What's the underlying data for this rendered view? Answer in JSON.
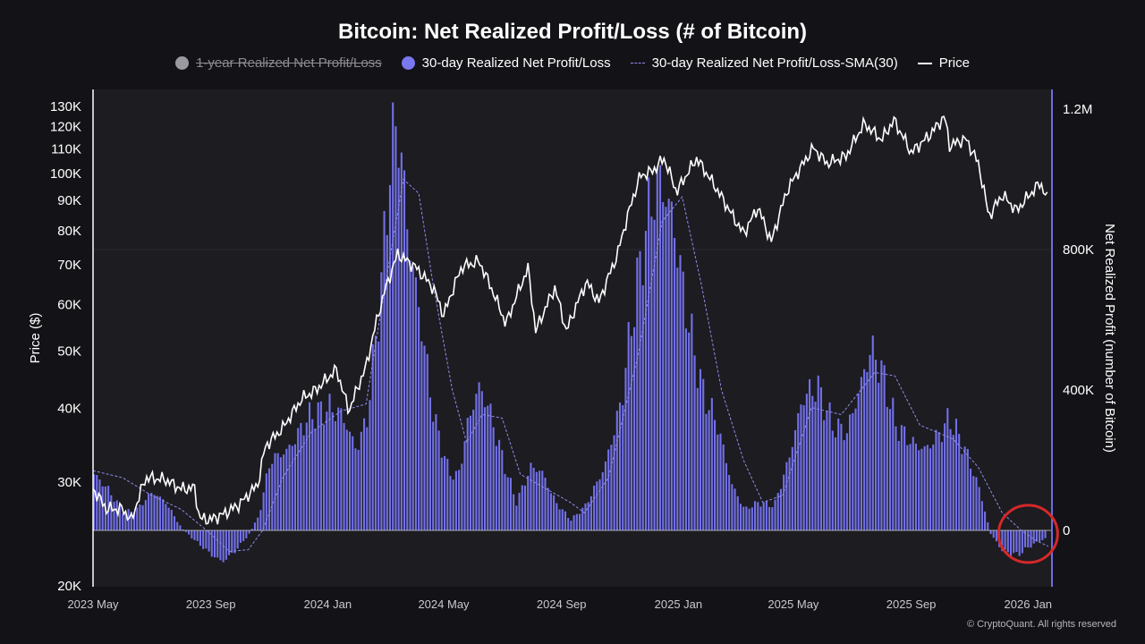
{
  "title": "Bitcoin: Net Realized Profit/Loss (# of Bitcoin)",
  "legend": [
    {
      "label": "1-year Realized Net Profit/Loss",
      "marker": "gray-dot",
      "disabled": true
    },
    {
      "label": "30-day Realized Net Profit/Loss",
      "marker": "purple-dot",
      "disabled": false
    },
    {
      "label": "30-day Realized Net Profit/Loss-SMA(30)",
      "marker": "dashed-line",
      "disabled": false
    },
    {
      "label": "Price",
      "marker": "white-line",
      "disabled": false
    }
  ],
  "footer": "© CryptoQuant. All rights reserved",
  "colors": {
    "background": "#131317",
    "plot_background": "#1c1c21",
    "bars": "#7270e8",
    "sma": "#8f8dea",
    "price": "#ffffff",
    "highlight_circle": "#d62828"
  },
  "chart_data": {
    "type": "bar",
    "title": "Bitcoin: Net Realized Profit/Loss (# of Bitcoin)",
    "x_ticks": [
      "2023 May",
      "2023 Sep",
      "2024 Jan",
      "2024 May",
      "2024 Sep",
      "2025 Jan",
      "2025 May",
      "2025 Sep",
      "2026 Jan"
    ],
    "x_tick_dates": [
      "2023-05-01",
      "2023-09-01",
      "2024-01-01",
      "2024-05-01",
      "2024-09-01",
      "2025-01-01",
      "2025-05-01",
      "2025-09-01",
      "2026-01-01"
    ],
    "x_range": [
      "2023-05-01",
      "2026-01-25"
    ],
    "left_axis": {
      "label": "Price ($)",
      "scale": "log",
      "range": [
        20000,
        135000
      ],
      "ticks": [
        20000,
        30000,
        40000,
        50000,
        60000,
        70000,
        80000,
        90000,
        100000,
        110000,
        120000,
        130000
      ],
      "tick_labels": [
        "20K",
        "30K",
        "40K",
        "50K",
        "60K",
        "70K",
        "80K",
        "90K",
        "100K",
        "110K",
        "120K",
        "130K"
      ]
    },
    "right_axis": {
      "label": "Net Realized Profit (number of Bitcoin)",
      "scale": "linear",
      "range": [
        -160000,
        1260000
      ],
      "ticks": [
        0,
        400000,
        800000,
        1200000
      ],
      "tick_labels": [
        "0",
        "400K",
        "800K",
        "1.2M"
      ]
    },
    "price_series": {
      "name": "Price",
      "points": [
        [
          "2023-05-01",
          29200
        ],
        [
          "2023-05-15",
          27000
        ],
        [
          "2023-06-01",
          27000
        ],
        [
          "2023-06-10",
          25800
        ],
        [
          "2023-06-25",
          30500
        ],
        [
          "2023-07-15",
          30300
        ],
        [
          "2023-08-01",
          29200
        ],
        [
          "2023-08-15",
          29300
        ],
        [
          "2023-08-20",
          26000
        ],
        [
          "2023-09-01",
          25900
        ],
        [
          "2023-09-15",
          26500
        ],
        [
          "2023-10-01",
          27500
        ],
        [
          "2023-10-20",
          29700
        ],
        [
          "2023-10-28",
          34500
        ],
        [
          "2023-11-15",
          37000
        ],
        [
          "2023-12-05",
          41500
        ],
        [
          "2023-12-20",
          43000
        ],
        [
          "2024-01-10",
          46500
        ],
        [
          "2024-01-23",
          39500
        ],
        [
          "2024-02-10",
          47000
        ],
        [
          "2024-02-28",
          62000
        ],
        [
          "2024-03-14",
          73000
        ],
        [
          "2024-04-01",
          69500
        ],
        [
          "2024-04-20",
          64000
        ],
        [
          "2024-05-01",
          57500
        ],
        [
          "2024-05-20",
          69500
        ],
        [
          "2024-06-07",
          71000
        ],
        [
          "2024-06-25",
          61000
        ],
        [
          "2024-07-05",
          55500
        ],
        [
          "2024-07-28",
          69000
        ],
        [
          "2024-08-05",
          54000
        ],
        [
          "2024-08-25",
          64000
        ],
        [
          "2024-09-06",
          54000
        ],
        [
          "2024-09-27",
          65500
        ],
        [
          "2024-10-10",
          60500
        ],
        [
          "2024-10-29",
          72500
        ],
        [
          "2024-11-12",
          88000
        ],
        [
          "2024-11-22",
          99000
        ],
        [
          "2024-12-05",
          101000
        ],
        [
          "2024-12-17",
          106000
        ],
        [
          "2024-12-30",
          93000
        ],
        [
          "2025-01-20",
          106000
        ],
        [
          "2025-02-03",
          98000
        ],
        [
          "2025-02-27",
          84500
        ],
        [
          "2025-03-10",
          79000
        ],
        [
          "2025-03-25",
          87500
        ],
        [
          "2025-04-08",
          76500
        ],
        [
          "2025-04-25",
          94000
        ],
        [
          "2025-05-22",
          110500
        ],
        [
          "2025-06-05",
          104000
        ],
        [
          "2025-06-25",
          107000
        ],
        [
          "2025-07-14",
          121500
        ],
        [
          "2025-08-01",
          114000
        ],
        [
          "2025-08-14",
          123000
        ],
        [
          "2025-09-01",
          108500
        ],
        [
          "2025-09-20",
          116000
        ],
        [
          "2025-10-06",
          125000
        ],
        [
          "2025-10-11",
          111500
        ],
        [
          "2025-10-28",
          114500
        ],
        [
          "2025-11-10",
          104000
        ],
        [
          "2025-11-21",
          84500
        ],
        [
          "2025-12-05",
          92000
        ],
        [
          "2025-12-20",
          86500
        ],
        [
          "2026-01-05",
          93000
        ],
        [
          "2026-01-14",
          96500
        ],
        [
          "2026-01-22",
          89500
        ]
      ]
    },
    "bars_series": {
      "name": "30-day Realized Net Profit/Loss",
      "points": [
        [
          "2023-05-01",
          160000
        ],
        [
          "2023-05-15",
          120000
        ],
        [
          "2023-06-01",
          50000
        ],
        [
          "2023-06-15",
          60000
        ],
        [
          "2023-07-01",
          110000
        ],
        [
          "2023-07-15",
          80000
        ],
        [
          "2023-08-01",
          5000
        ],
        [
          "2023-08-15",
          -30000
        ],
        [
          "2023-09-01",
          -70000
        ],
        [
          "2023-09-12",
          -90000
        ],
        [
          "2023-09-25",
          -60000
        ],
        [
          "2023-10-10",
          -10000
        ],
        [
          "2023-10-20",
          40000
        ],
        [
          "2023-11-01",
          200000
        ],
        [
          "2023-11-20",
          230000
        ],
        [
          "2023-12-10",
          320000
        ],
        [
          "2024-01-01",
          350000
        ],
        [
          "2024-01-15",
          330000
        ],
        [
          "2024-01-30",
          230000
        ],
        [
          "2024-02-10",
          320000
        ],
        [
          "2024-02-25",
          700000
        ],
        [
          "2024-03-05",
          1050000
        ],
        [
          "2024-03-13",
          1170000
        ],
        [
          "2024-03-25",
          820000
        ],
        [
          "2024-04-08",
          560000
        ],
        [
          "2024-04-20",
          320000
        ],
        [
          "2024-05-05",
          170000
        ],
        [
          "2024-05-15",
          150000
        ],
        [
          "2024-05-25",
          300000
        ],
        [
          "2024-06-05",
          410000
        ],
        [
          "2024-06-15",
          360000
        ],
        [
          "2024-07-01",
          200000
        ],
        [
          "2024-07-15",
          80000
        ],
        [
          "2024-07-30",
          180000
        ],
        [
          "2024-08-10",
          170000
        ],
        [
          "2024-08-25",
          80000
        ],
        [
          "2024-09-10",
          30000
        ],
        [
          "2024-09-25",
          70000
        ],
        [
          "2024-10-15",
          180000
        ],
        [
          "2024-11-01",
          360000
        ],
        [
          "2024-11-15",
          650000
        ],
        [
          "2024-12-01",
          920000
        ],
        [
          "2024-12-12",
          1000000
        ],
        [
          "2024-12-25",
          890000
        ],
        [
          "2025-01-10",
          600000
        ],
        [
          "2025-01-25",
          400000
        ],
        [
          "2025-02-10",
          300000
        ],
        [
          "2025-02-25",
          130000
        ],
        [
          "2025-03-10",
          60000
        ],
        [
          "2025-03-25",
          80000
        ],
        [
          "2025-04-10",
          70000
        ],
        [
          "2025-04-25",
          200000
        ],
        [
          "2025-05-10",
          380000
        ],
        [
          "2025-05-25",
          410000
        ],
        [
          "2025-06-10",
          300000
        ],
        [
          "2025-06-25",
          280000
        ],
        [
          "2025-07-10",
          420000
        ],
        [
          "2025-07-20",
          520000
        ],
        [
          "2025-08-01",
          450000
        ],
        [
          "2025-08-15",
          300000
        ],
        [
          "2025-09-01",
          250000
        ],
        [
          "2025-09-15",
          230000
        ],
        [
          "2025-10-01",
          280000
        ],
        [
          "2025-10-10",
          320000
        ],
        [
          "2025-10-25",
          240000
        ],
        [
          "2025-11-10",
          120000
        ],
        [
          "2025-11-22",
          -10000
        ],
        [
          "2025-12-05",
          -60000
        ],
        [
          "2025-12-20",
          -70000
        ],
        [
          "2026-01-05",
          -40000
        ],
        [
          "2026-01-20",
          -20000
        ]
      ]
    },
    "sma_series": {
      "name": "30-day Realized Net Profit/Loss-SMA(30)",
      "points": [
        [
          "2023-05-01",
          170000
        ],
        [
          "2023-06-01",
          150000
        ],
        [
          "2023-07-01",
          100000
        ],
        [
          "2023-08-01",
          60000
        ],
        [
          "2023-09-01",
          -10000
        ],
        [
          "2023-09-20",
          -60000
        ],
        [
          "2023-10-10",
          -55000
        ],
        [
          "2023-10-25",
          0
        ],
        [
          "2023-11-15",
          150000
        ],
        [
          "2023-12-15",
          280000
        ],
        [
          "2024-01-15",
          340000
        ],
        [
          "2024-02-10",
          360000
        ],
        [
          "2024-03-01",
          700000
        ],
        [
          "2024-03-20",
          1000000
        ],
        [
          "2024-04-05",
          960000
        ],
        [
          "2024-04-20",
          700000
        ],
        [
          "2024-05-10",
          400000
        ],
        [
          "2024-05-25",
          250000
        ],
        [
          "2024-06-10",
          330000
        ],
        [
          "2024-07-01",
          320000
        ],
        [
          "2024-07-20",
          160000
        ],
        [
          "2024-08-15",
          120000
        ],
        [
          "2024-09-10",
          80000
        ],
        [
          "2024-09-25",
          50000
        ],
        [
          "2024-10-20",
          150000
        ],
        [
          "2024-11-20",
          500000
        ],
        [
          "2024-12-15",
          880000
        ],
        [
          "2025-01-05",
          950000
        ],
        [
          "2025-01-25",
          700000
        ],
        [
          "2025-02-15",
          400000
        ],
        [
          "2025-03-10",
          200000
        ],
        [
          "2025-03-30",
          80000
        ],
        [
          "2025-04-20",
          100000
        ],
        [
          "2025-05-20",
          350000
        ],
        [
          "2025-06-20",
          330000
        ],
        [
          "2025-07-25",
          450000
        ],
        [
          "2025-08-15",
          440000
        ],
        [
          "2025-09-10",
          300000
        ],
        [
          "2025-10-15",
          260000
        ],
        [
          "2025-11-10",
          180000
        ],
        [
          "2025-12-05",
          50000
        ],
        [
          "2025-12-25",
          0
        ],
        [
          "2026-01-10",
          -30000
        ],
        [
          "2026-01-22",
          -45000
        ]
      ]
    },
    "annotations": [
      {
        "type": "circle",
        "color": "red",
        "date": "2026-01-01",
        "value": -10000
      }
    ]
  }
}
